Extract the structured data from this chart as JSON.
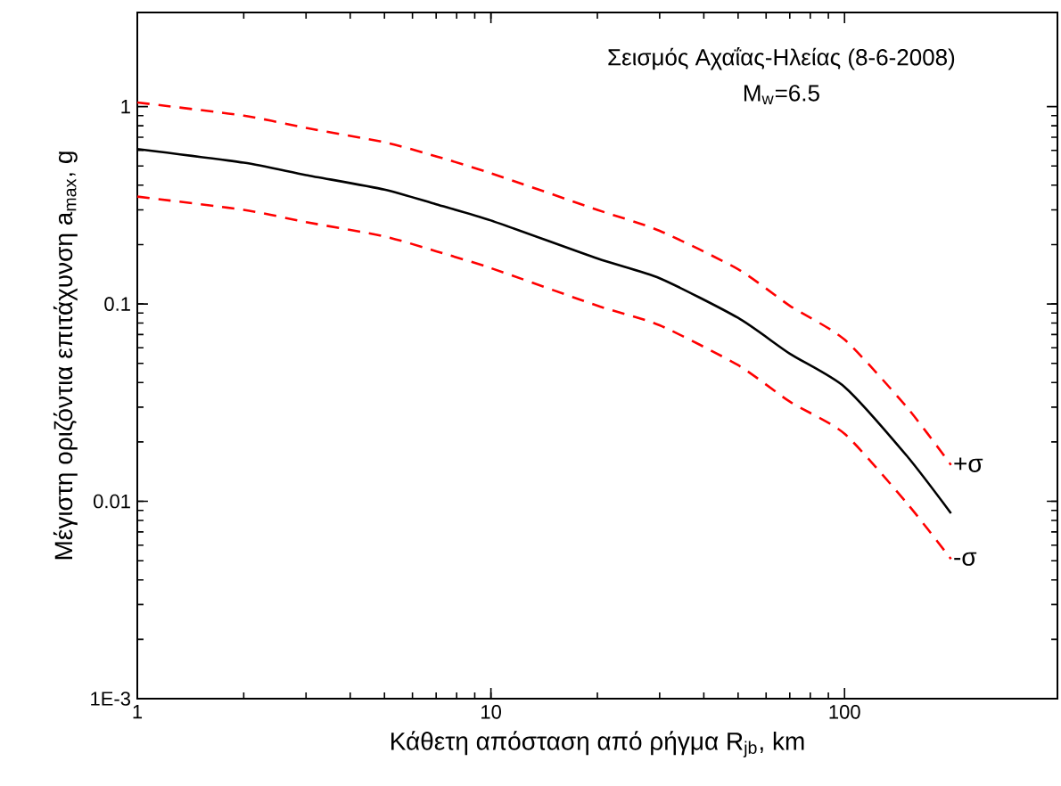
{
  "chart_data": {
    "type": "line",
    "xlabel": "Κάθετη απόσταση από ρήγμα R$_{jb}$, km",
    "ylabel": "Μέγιστη οριζόντια επιτάχυνση a$_{max}$, g",
    "annotations": [
      "Σεισμός Αχαΐας-Ηλείας (8-6-2008)",
      "M$_{w}$=6.5"
    ],
    "log": "xy",
    "x": [
      1,
      2,
      3,
      5,
      7,
      10,
      20,
      30,
      50,
      70,
      100,
      150,
      200
    ],
    "series": [
      {
        "color": "#000000",
        "line_style": "solid",
        "values": [
          0.61,
          0.52,
          0.45,
          0.38,
          0.32,
          0.265,
          0.17,
          0.135,
          0.085,
          0.056,
          0.038,
          0.017,
          0.0087
        ]
      },
      {
        "name": "+σ",
        "color": "#ff0000",
        "line_style": "dashed",
        "values": [
          1.05,
          0.9,
          0.78,
          0.66,
          0.56,
          0.46,
          0.3,
          0.235,
          0.15,
          0.098,
          0.066,
          0.03,
          0.0153
        ]
      },
      {
        "name": "-σ",
        "color": "#ff0000",
        "line_style": "dashed",
        "values": [
          0.35,
          0.3,
          0.26,
          0.22,
          0.185,
          0.152,
          0.098,
          0.078,
          0.049,
          0.032,
          0.022,
          0.0098,
          0.0051
        ]
      }
    ],
    "xlim": [
      1,
      400
    ],
    "ylim": [
      0.001,
      3
    ],
    "xticks": [
      1,
      10,
      100
    ],
    "yticks": [
      {
        "value": 0.001,
        "label": "1E-3"
      },
      0.01,
      0.1,
      1
    ],
    "grid": false
  }
}
